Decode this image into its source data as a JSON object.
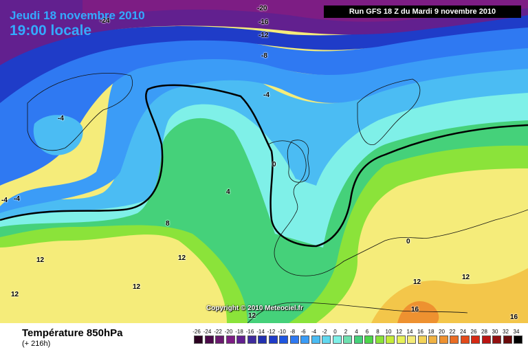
{
  "header": {
    "date": "Jeudi 18 novembre 2010",
    "time": "19:00 locale",
    "run": "Run GFS 18 Z du Mardi 9 novembre 2010"
  },
  "footer": {
    "variable": "Température 850hPa",
    "lead": "(+ 216h)",
    "copyright": "Copyright © 2010 Meteociel.fr"
  },
  "contour_labels": [
    "-24",
    "-20",
    "-16",
    "-12",
    "-8",
    "-4",
    "-4",
    "-4",
    "-4",
    "0",
    "0",
    "4",
    "8",
    "12",
    "12",
    "12",
    "12",
    "12",
    "12",
    "12",
    "16",
    "16"
  ],
  "legend": {
    "ticks": [
      "-26",
      "-24",
      "-22",
      "-20",
      "-18",
      "-16",
      "-14",
      "-12",
      "-10",
      "-8",
      "-6",
      "-4",
      "-2",
      "0",
      "2",
      "4",
      "6",
      "8",
      "10",
      "12",
      "14",
      "16",
      "18",
      "20",
      "22",
      "24",
      "26",
      "28",
      "30",
      "32",
      "34"
    ],
    "colors": [
      "#2a0020",
      "#4b0a4a",
      "#6a1a6e",
      "#7d1d84",
      "#62208f",
      "#3f2b9c",
      "#2231b0",
      "#1f3cc8",
      "#1f56e0",
      "#2f79f2",
      "#3b9cf7",
      "#4bbcf3",
      "#62d8ef",
      "#7ff0e8",
      "#6fe0b0",
      "#45d17a",
      "#4dd64a",
      "#8be33a",
      "#c6ec3a",
      "#e8f25a",
      "#f5ec7a",
      "#f3d35a",
      "#f0b244",
      "#ee9130",
      "#ea6d24",
      "#e34b1b",
      "#d62a14",
      "#bb1512",
      "#931010",
      "#6a0a0a",
      "#000000"
    ]
  }
}
